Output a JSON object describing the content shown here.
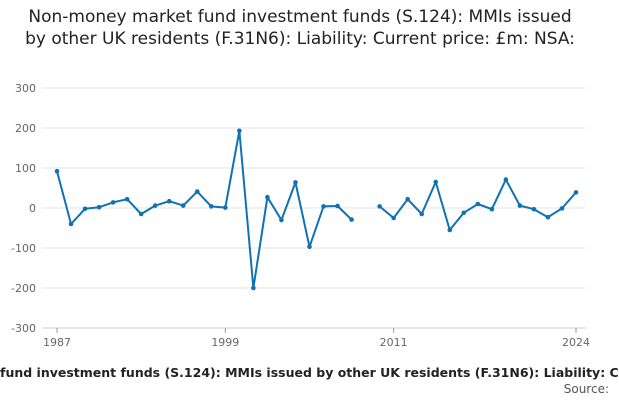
{
  "chart_data": {
    "type": "line",
    "title": "Non-money market fund investment funds (S.124): MMIs issued by other UK residents (F.31N6): Liability: Current price: £m: NSA:",
    "xlabel": "",
    "ylabel": "",
    "xlim": [
      1987,
      2024
    ],
    "ylim": [
      -300,
      300
    ],
    "yticks": [
      300,
      200,
      100,
      0,
      -100,
      -200,
      -300
    ],
    "xticks": [
      "1987",
      "1999",
      "2011",
      "2024"
    ],
    "grid": true,
    "legend": "none",
    "series_color": "#0f72b1",
    "series": [
      {
        "name": "",
        "points": [
          [
            1987.0,
            92
          ],
          [
            1988.0,
            -40
          ],
          [
            1989.0,
            -2
          ],
          [
            1990.0,
            2
          ],
          [
            1991.0,
            14
          ],
          [
            1992.0,
            22
          ],
          [
            1993.0,
            -15
          ],
          [
            1994.0,
            6
          ],
          [
            1995.0,
            17
          ],
          [
            1996.0,
            6
          ],
          [
            1997.0,
            41
          ],
          [
            1998.0,
            4
          ],
          [
            1999.0,
            1
          ],
          [
            2000.0,
            193
          ],
          [
            2001.0,
            -200
          ],
          [
            2002.0,
            27
          ],
          [
            2003.0,
            -30
          ],
          [
            2004.0,
            64
          ],
          [
            2005.0,
            -97
          ],
          [
            2006.0,
            4
          ],
          [
            2007.0,
            5
          ],
          [
            2008.0,
            -29
          ],
          null,
          [
            2010.0,
            4
          ],
          [
            2011.0,
            -25
          ],
          [
            2012.0,
            22
          ],
          [
            2013.0,
            -15
          ],
          [
            2014.0,
            65
          ],
          [
            2015.0,
            -55
          ],
          [
            2016.0,
            -12
          ],
          [
            2017.0,
            10
          ],
          [
            2018.0,
            -3
          ],
          [
            2019.0,
            71
          ],
          [
            2020.0,
            6
          ],
          [
            2021.0,
            -3
          ],
          [
            2022.0,
            -23
          ],
          [
            2023.0,
            -1
          ],
          [
            2024.0,
            39
          ]
        ]
      }
    ]
  },
  "footer": {
    "text": "fund investment funds (S.124): MMIs issued by other UK residents (F.31N6): Liability: C",
    "source": "Source:"
  }
}
